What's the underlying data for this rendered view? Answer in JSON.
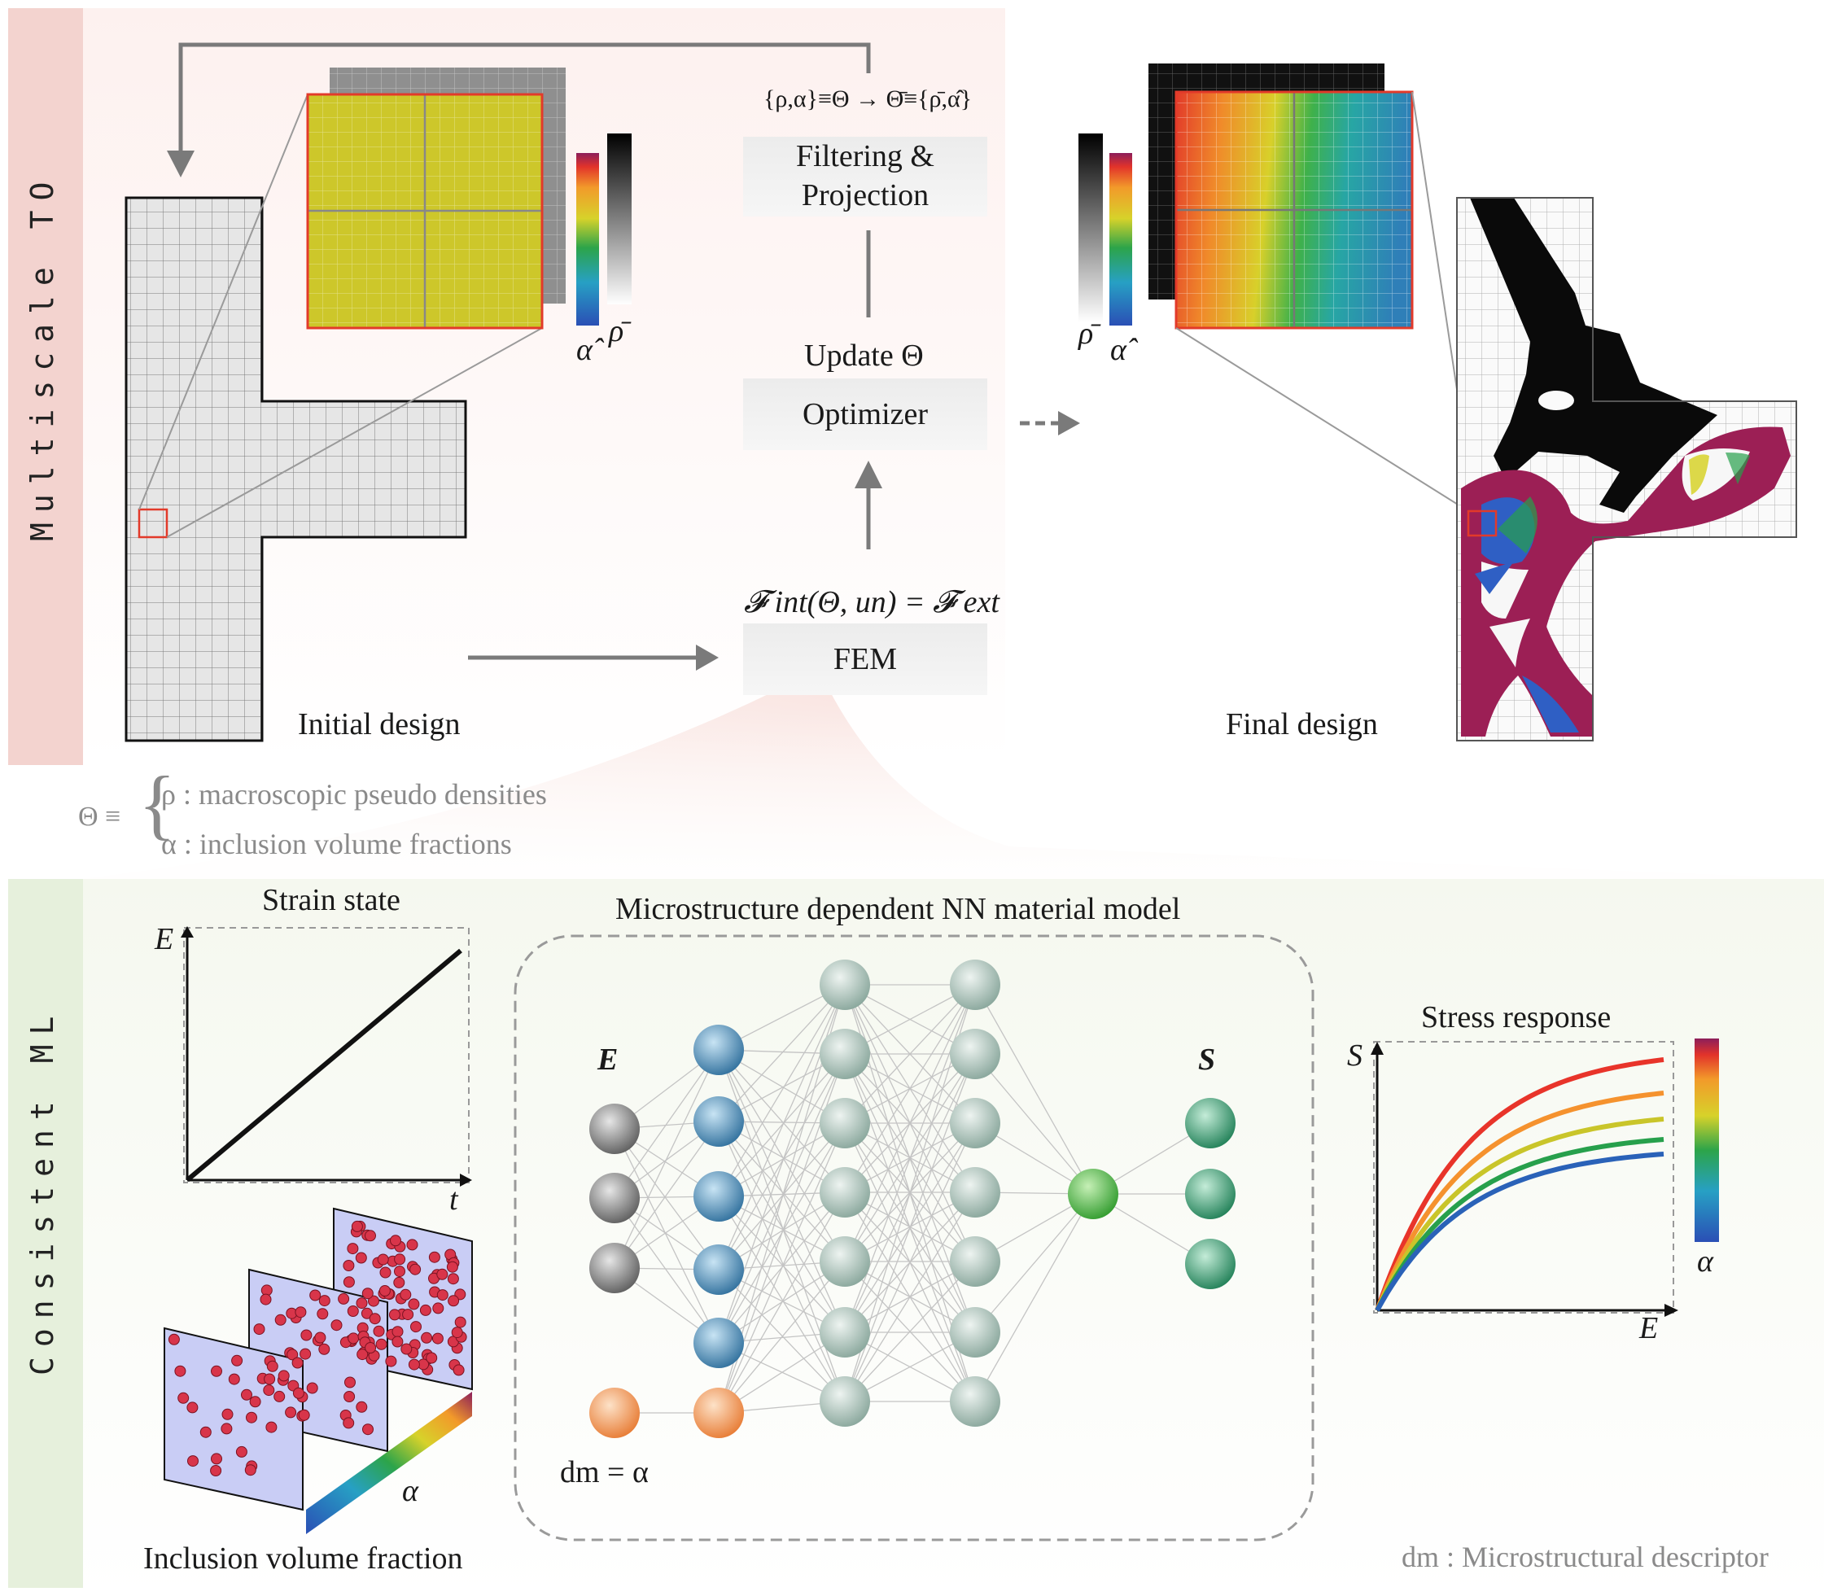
{
  "top_section": {
    "side_label": "Multiscale TO",
    "initial_design_label": "Initial design",
    "final_design_label": "Final design",
    "filter_equation": "{ρ,α}≡Θ → Θ̄≡{ρ̄,α̂}",
    "filtering_box": "Filtering & Projection",
    "filtering_line1": "Filtering &",
    "filtering_line2": "Projection",
    "update_label": "Update Θ",
    "optimizer_box": "Optimizer",
    "fem_equation": "𝓕 int(Θ, un) = 𝓕 ext",
    "fem_box": "FEM",
    "colorbar_alpha_label": "α̂",
    "colorbar_rho_label": "ρ̄",
    "theta_def_prefix": "Θ ≡",
    "theta_def_rho": "ρ : macroscopic pseudo densities",
    "theta_def_alpha": "α : inclusion volume fractions"
  },
  "bottom_section": {
    "side_label": "Consistent ML",
    "strain_title": "Strain state",
    "strain_ylabel": "E",
    "strain_xlabel": "t",
    "inclusion_title": "Inclusion volume fraction",
    "inclusion_alpha_label": "α",
    "nn_title": "Microstructure dependent NN material model",
    "nn_input_label": "E",
    "nn_output_label": "S",
    "nn_descriptor_label": "dm = α",
    "stress_title": "Stress response",
    "stress_ylabel": "S",
    "stress_xlabel": "E",
    "stress_colorbar_label": "α",
    "footnote": "dm : Microstructural descriptor"
  },
  "colors": {
    "top_band": "#f3d3cf",
    "bottom_band": "#e6f0dc",
    "arrow": "#7a7a7a",
    "red_box": "#e23a2a",
    "design_magenta": "#9c1f55",
    "design_blue": "#2f5fc4",
    "node_gray": "#7b7b7b",
    "node_blue": "#3b7fb0",
    "node_sage": "#9fb8ae",
    "node_green": "#3aa43a",
    "node_teal": "#2f9467",
    "node_orange": "#ee8a4a"
  },
  "stress_curves": [
    {
      "color": "#e8342a"
    },
    {
      "color": "#f5922e"
    },
    {
      "color": "#c9c52a"
    },
    {
      "color": "#27a04c"
    },
    {
      "color": "#2a62b8"
    }
  ]
}
